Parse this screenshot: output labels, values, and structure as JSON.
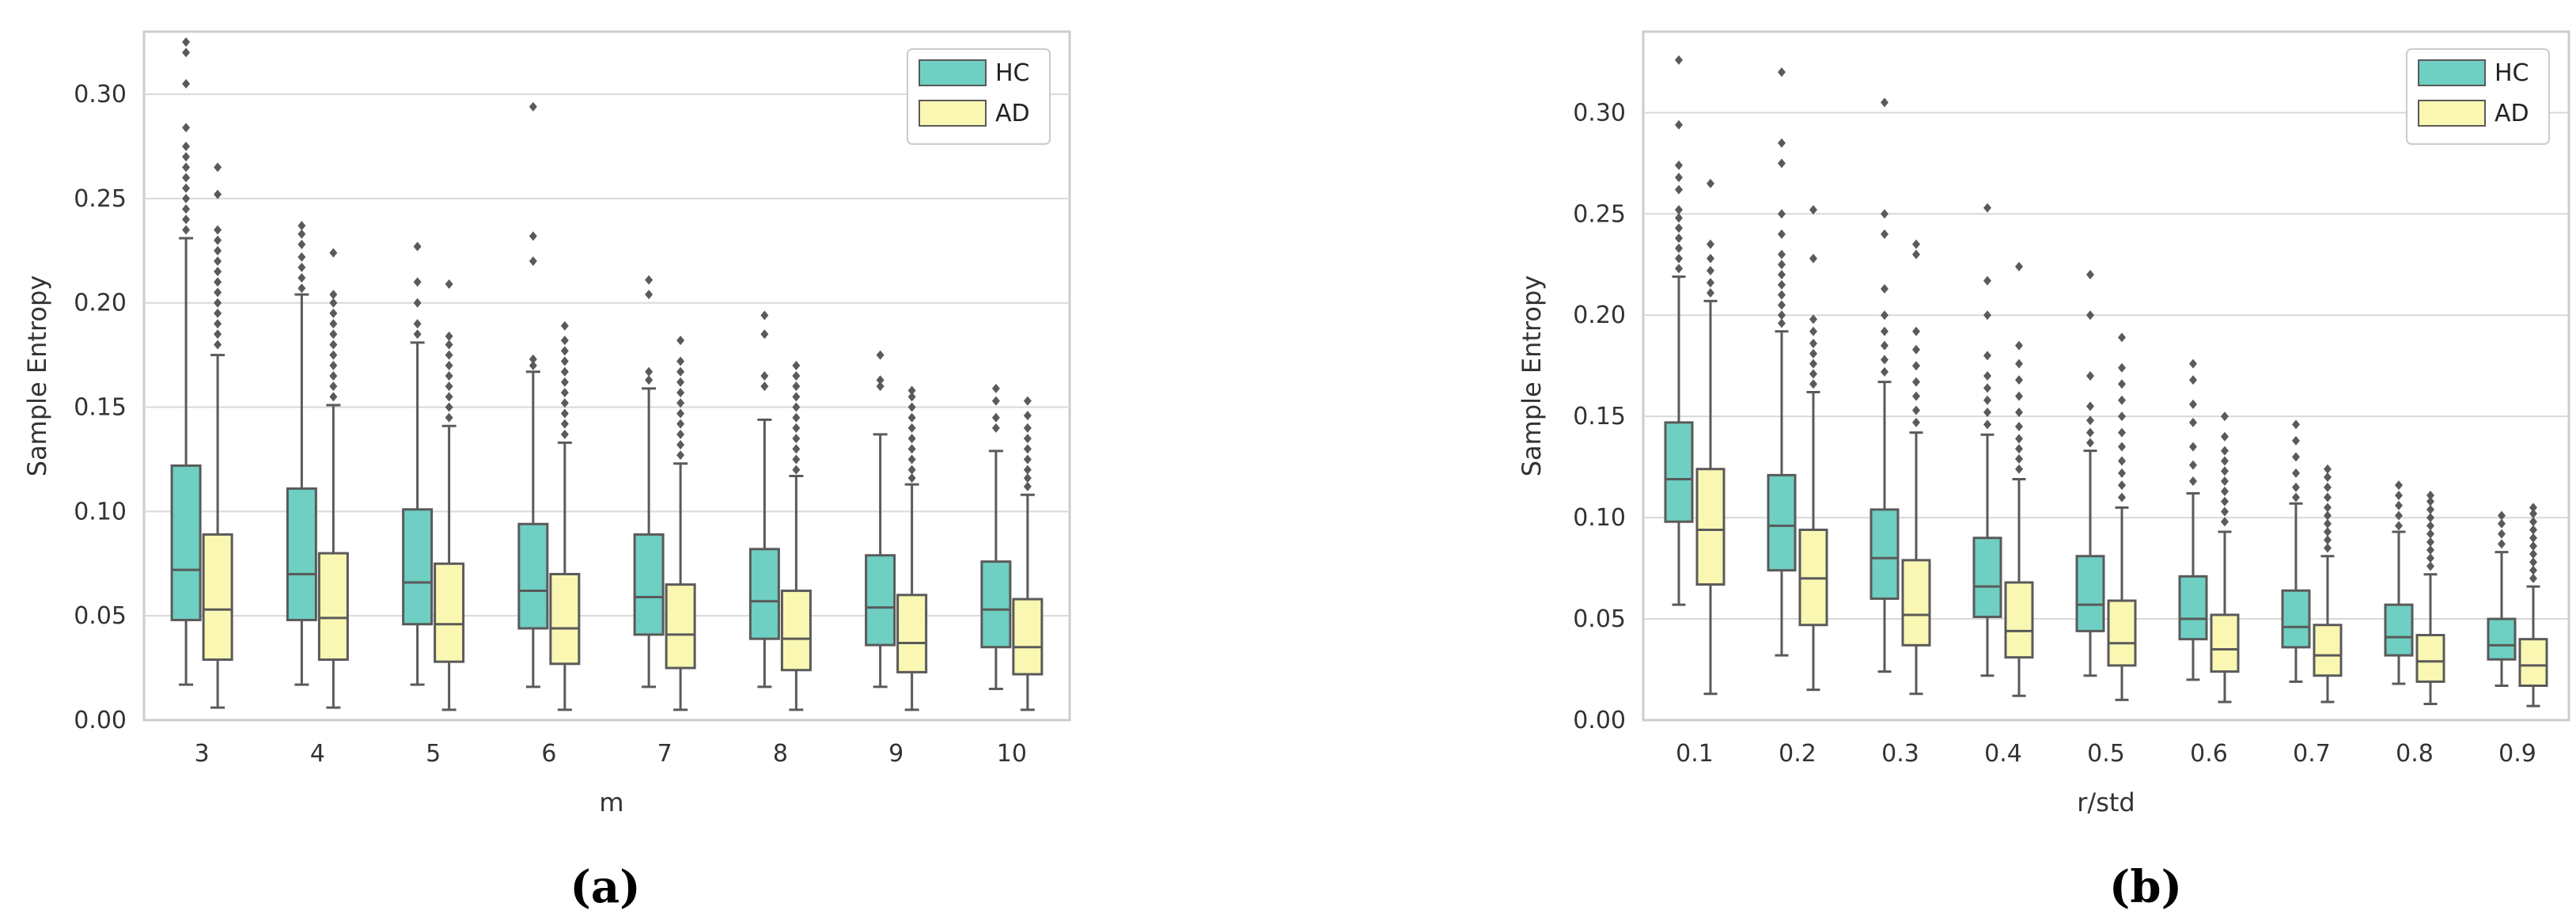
{
  "colors": {
    "hc": "#6ecfc2",
    "ad": "#f9f7b2",
    "stroke": "#5a5a5a",
    "grid": "#d9d9d9",
    "frame": "#cccccc"
  },
  "chart_data": [
    {
      "type": "box",
      "panel_label": "(a)",
      "xlabel": "m",
      "ylabel": "Sample Entropy",
      "ylim": [
        0,
        0.33
      ],
      "yticks": [
        0.0,
        0.05,
        0.1,
        0.15,
        0.2,
        0.25,
        0.3
      ],
      "ytick_labels": [
        "0.00",
        "0.05",
        "0.10",
        "0.15",
        "0.20",
        "0.25",
        "0.30"
      ],
      "categories": [
        "3",
        "4",
        "5",
        "6",
        "7",
        "8",
        "9",
        "10"
      ],
      "legend": {
        "position": "top-right",
        "labels": [
          "HC",
          "AD"
        ]
      },
      "series": [
        {
          "name": "HC",
          "boxes": [
            {
              "min": 0.017,
              "q1": 0.048,
              "median": 0.072,
              "q3": 0.122,
              "max": 0.231,
              "outliers": [
                0.235,
                0.24,
                0.245,
                0.25,
                0.255,
                0.26,
                0.265,
                0.27,
                0.275,
                0.284,
                0.305,
                0.32,
                0.325
              ]
            },
            {
              "min": 0.017,
              "q1": 0.048,
              "median": 0.07,
              "q3": 0.111,
              "max": 0.204,
              "outliers": [
                0.207,
                0.212,
                0.217,
                0.222,
                0.228,
                0.233,
                0.237
              ]
            },
            {
              "min": 0.017,
              "q1": 0.046,
              "median": 0.066,
              "q3": 0.101,
              "max": 0.181,
              "outliers": [
                0.185,
                0.19,
                0.2,
                0.21,
                0.227
              ]
            },
            {
              "min": 0.016,
              "q1": 0.044,
              "median": 0.062,
              "q3": 0.094,
              "max": 0.167,
              "outliers": [
                0.17,
                0.173,
                0.22,
                0.232,
                0.294
              ]
            },
            {
              "min": 0.016,
              "q1": 0.041,
              "median": 0.059,
              "q3": 0.089,
              "max": 0.159,
              "outliers": [
                0.163,
                0.167,
                0.204,
                0.211
              ]
            },
            {
              "min": 0.016,
              "q1": 0.039,
              "median": 0.057,
              "q3": 0.082,
              "max": 0.144,
              "outliers": [
                0.16,
                0.165,
                0.185,
                0.194
              ]
            },
            {
              "min": 0.016,
              "q1": 0.036,
              "median": 0.054,
              "q3": 0.079,
              "max": 0.137,
              "outliers": [
                0.16,
                0.163,
                0.175
              ]
            },
            {
              "min": 0.015,
              "q1": 0.035,
              "median": 0.053,
              "q3": 0.076,
              "max": 0.129,
              "outliers": [
                0.14,
                0.145,
                0.153,
                0.159
              ]
            }
          ]
        },
        {
          "name": "AD",
          "boxes": [
            {
              "min": 0.006,
              "q1": 0.029,
              "median": 0.053,
              "q3": 0.089,
              "max": 0.175,
              "outliers": [
                0.18,
                0.185,
                0.19,
                0.195,
                0.2,
                0.205,
                0.21,
                0.215,
                0.22,
                0.225,
                0.23,
                0.235,
                0.252,
                0.265
              ]
            },
            {
              "min": 0.006,
              "q1": 0.029,
              "median": 0.049,
              "q3": 0.08,
              "max": 0.151,
              "outliers": [
                0.155,
                0.16,
                0.165,
                0.17,
                0.175,
                0.18,
                0.185,
                0.19,
                0.195,
                0.2,
                0.204,
                0.224
              ]
            },
            {
              "min": 0.005,
              "q1": 0.028,
              "median": 0.046,
              "q3": 0.075,
              "max": 0.141,
              "outliers": [
                0.145,
                0.15,
                0.155,
                0.16,
                0.165,
                0.17,
                0.175,
                0.18,
                0.184,
                0.209
              ]
            },
            {
              "min": 0.005,
              "q1": 0.027,
              "median": 0.044,
              "q3": 0.07,
              "max": 0.133,
              "outliers": [
                0.137,
                0.142,
                0.147,
                0.152,
                0.157,
                0.162,
                0.167,
                0.172,
                0.177,
                0.182,
                0.189
              ]
            },
            {
              "min": 0.005,
              "q1": 0.025,
              "median": 0.041,
              "q3": 0.065,
              "max": 0.123,
              "outliers": [
                0.127,
                0.132,
                0.137,
                0.142,
                0.147,
                0.152,
                0.157,
                0.162,
                0.167,
                0.172,
                0.182
              ]
            },
            {
              "min": 0.005,
              "q1": 0.024,
              "median": 0.039,
              "q3": 0.062,
              "max": 0.117,
              "outliers": [
                0.12,
                0.125,
                0.13,
                0.135,
                0.14,
                0.145,
                0.15,
                0.155,
                0.16,
                0.165,
                0.17
              ]
            },
            {
              "min": 0.005,
              "q1": 0.023,
              "median": 0.037,
              "q3": 0.06,
              "max": 0.113,
              "outliers": [
                0.116,
                0.12,
                0.125,
                0.13,
                0.135,
                0.14,
                0.145,
                0.15,
                0.155,
                0.158
              ]
            },
            {
              "min": 0.005,
              "q1": 0.022,
              "median": 0.035,
              "q3": 0.058,
              "max": 0.108,
              "outliers": [
                0.112,
                0.116,
                0.12,
                0.125,
                0.13,
                0.135,
                0.14,
                0.146,
                0.153
              ]
            }
          ]
        }
      ]
    },
    {
      "type": "box",
      "panel_label": "(b)",
      "xlabel": "r/std",
      "ylabel": "Sample Entropy",
      "ylim": [
        0,
        0.34
      ],
      "yticks": [
        0.0,
        0.05,
        0.1,
        0.15,
        0.2,
        0.25,
        0.3
      ],
      "ytick_labels": [
        "0.00",
        "0.05",
        "0.10",
        "0.15",
        "0.20",
        "0.25",
        "0.30"
      ],
      "categories": [
        "0.1",
        "0.2",
        "0.3",
        "0.4",
        "0.5",
        "0.6",
        "0.7",
        "0.8",
        "0.9"
      ],
      "legend": {
        "position": "top-right",
        "labels": [
          "HC",
          "AD"
        ]
      },
      "series": [
        {
          "name": "HC",
          "boxes": [
            {
              "min": 0.057,
              "q1": 0.098,
              "median": 0.119,
              "q3": 0.147,
              "max": 0.219,
              "outliers": [
                0.223,
                0.228,
                0.233,
                0.238,
                0.243,
                0.248,
                0.252,
                0.262,
                0.268,
                0.274,
                0.294,
                0.326
              ]
            },
            {
              "min": 0.032,
              "q1": 0.074,
              "median": 0.096,
              "q3": 0.121,
              "max": 0.192,
              "outliers": [
                0.196,
                0.2,
                0.205,
                0.21,
                0.215,
                0.22,
                0.225,
                0.23,
                0.24,
                0.25,
                0.275,
                0.285,
                0.32
              ]
            },
            {
              "min": 0.024,
              "q1": 0.06,
              "median": 0.08,
              "q3": 0.104,
              "max": 0.167,
              "outliers": [
                0.172,
                0.178,
                0.185,
                0.192,
                0.2,
                0.213,
                0.24,
                0.25,
                0.305
              ]
            },
            {
              "min": 0.022,
              "q1": 0.051,
              "median": 0.066,
              "q3": 0.09,
              "max": 0.141,
              "outliers": [
                0.146,
                0.152,
                0.158,
                0.164,
                0.17,
                0.18,
                0.2,
                0.217,
                0.253
              ]
            },
            {
              "min": 0.022,
              "q1": 0.044,
              "median": 0.057,
              "q3": 0.081,
              "max": 0.133,
              "outliers": [
                0.137,
                0.142,
                0.148,
                0.155,
                0.17,
                0.2,
                0.22
              ]
            },
            {
              "min": 0.02,
              "q1": 0.04,
              "median": 0.05,
              "q3": 0.071,
              "max": 0.112,
              "outliers": [
                0.118,
                0.126,
                0.135,
                0.147,
                0.156,
                0.168,
                0.176
              ]
            },
            {
              "min": 0.019,
              "q1": 0.036,
              "median": 0.046,
              "q3": 0.064,
              "max": 0.107,
              "outliers": [
                0.11,
                0.115,
                0.122,
                0.13,
                0.138,
                0.146
              ]
            },
            {
              "min": 0.018,
              "q1": 0.032,
              "median": 0.041,
              "q3": 0.057,
              "max": 0.093,
              "outliers": [
                0.096,
                0.101,
                0.106,
                0.111,
                0.116
              ]
            },
            {
              "min": 0.017,
              "q1": 0.03,
              "median": 0.037,
              "q3": 0.05,
              "max": 0.083,
              "outliers": [
                0.087,
                0.092,
                0.097,
                0.101
              ]
            }
          ]
        },
        {
          "name": "AD",
          "boxes": [
            {
              "min": 0.013,
              "q1": 0.067,
              "median": 0.094,
              "q3": 0.124,
              "max": 0.207,
              "outliers": [
                0.211,
                0.216,
                0.222,
                0.228,
                0.235,
                0.265
              ]
            },
            {
              "min": 0.015,
              "q1": 0.047,
              "median": 0.07,
              "q3": 0.094,
              "max": 0.162,
              "outliers": [
                0.166,
                0.171,
                0.176,
                0.181,
                0.186,
                0.192,
                0.198,
                0.228,
                0.252
              ]
            },
            {
              "min": 0.013,
              "q1": 0.037,
              "median": 0.052,
              "q3": 0.079,
              "max": 0.142,
              "outliers": [
                0.147,
                0.153,
                0.16,
                0.167,
                0.175,
                0.183,
                0.192,
                0.23,
                0.235
              ]
            },
            {
              "min": 0.012,
              "q1": 0.031,
              "median": 0.044,
              "q3": 0.068,
              "max": 0.119,
              "outliers": [
                0.124,
                0.129,
                0.134,
                0.139,
                0.145,
                0.152,
                0.16,
                0.168,
                0.176,
                0.185,
                0.224
              ]
            },
            {
              "min": 0.01,
              "q1": 0.027,
              "median": 0.038,
              "q3": 0.059,
              "max": 0.105,
              "outliers": [
                0.11,
                0.116,
                0.122,
                0.128,
                0.135,
                0.142,
                0.15,
                0.158,
                0.166,
                0.174,
                0.189
              ]
            },
            {
              "min": 0.009,
              "q1": 0.024,
              "median": 0.035,
              "q3": 0.052,
              "max": 0.093,
              "outliers": [
                0.098,
                0.103,
                0.108,
                0.113,
                0.118,
                0.123,
                0.128,
                0.133,
                0.14,
                0.15
              ]
            },
            {
              "min": 0.009,
              "q1": 0.022,
              "median": 0.032,
              "q3": 0.047,
              "max": 0.081,
              "outliers": [
                0.085,
                0.089,
                0.093,
                0.097,
                0.101,
                0.105,
                0.11,
                0.115,
                0.12,
                0.124
              ]
            },
            {
              "min": 0.008,
              "q1": 0.019,
              "median": 0.029,
              "q3": 0.042,
              "max": 0.072,
              "outliers": [
                0.076,
                0.08,
                0.084,
                0.088,
                0.092,
                0.096,
                0.1,
                0.104,
                0.108,
                0.111
              ]
            },
            {
              "min": 0.007,
              "q1": 0.017,
              "median": 0.027,
              "q3": 0.04,
              "max": 0.066,
              "outliers": [
                0.07,
                0.074,
                0.078,
                0.082,
                0.086,
                0.09,
                0.094,
                0.098,
                0.102,
                0.105
              ]
            }
          ]
        }
      ]
    }
  ]
}
